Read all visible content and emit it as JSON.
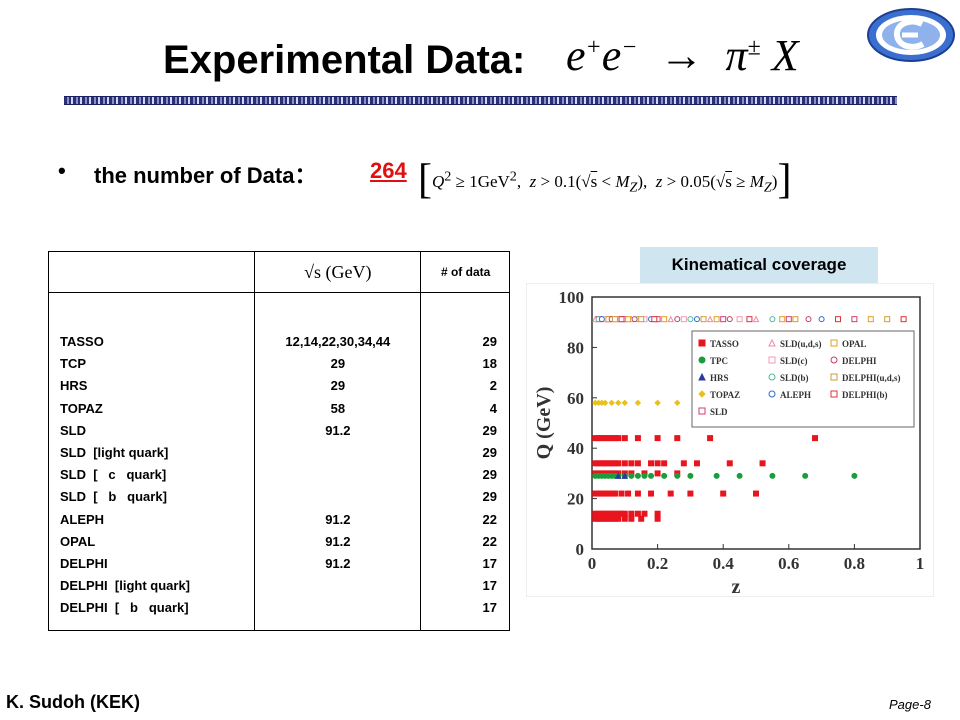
{
  "slide": {
    "title": "Experimental Data:",
    "title_math": "e⁺e⁻ → π± X",
    "bullet_label": "the number of Data：",
    "data_count": "264",
    "condition": "Q² ≥ 1GeV², z > 0.1(√s < M_Z), z > 0.05(√s ≥ M_Z)",
    "footer_author": "K. Sudoh (KEK)",
    "footer_page": "Page-8"
  },
  "table": {
    "headers": [
      "",
      "√s (GeV)",
      "# of data"
    ],
    "rows": [
      {
        "exp": "TASSO",
        "energy": "12,14,22,30,34,44",
        "n": "29"
      },
      {
        "exp": "TCP",
        "energy": "29",
        "n": "18"
      },
      {
        "exp": "HRS",
        "energy": "29",
        "n": "2"
      },
      {
        "exp": "TOPAZ",
        "energy": "58",
        "n": "4"
      },
      {
        "exp": "SLD",
        "energy": "91.2",
        "n": "29"
      },
      {
        "exp": "SLD  [light quark]",
        "energy": "",
        "n": "29"
      },
      {
        "exp": "SLD  [   c   quark]",
        "energy": "",
        "n": "29"
      },
      {
        "exp": "SLD  [   b   quark]",
        "energy": "",
        "n": "29"
      },
      {
        "exp": "ALEPH",
        "energy": "91.2",
        "n": "22"
      },
      {
        "exp": "OPAL",
        "energy": "91.2",
        "n": "22"
      },
      {
        "exp": "DELPHI",
        "energy": "91.2",
        "n": "17"
      },
      {
        "exp": "DELPHI  [light quark]",
        "energy": "",
        "n": "17"
      },
      {
        "exp": "DELPHI  [   b   quark]",
        "energy": "",
        "n": "17"
      }
    ]
  },
  "coverage": {
    "label": "Kinematical coverage"
  },
  "chart_data": {
    "type": "scatter",
    "xlabel": "z",
    "ylabel": "Q (GeV)",
    "xlim": [
      0,
      1
    ],
    "ylim": [
      0,
      100
    ],
    "xticks": [
      "0",
      "0.2",
      "0.4",
      "0.6",
      "0.8",
      "1"
    ],
    "yticks": [
      "0",
      "20",
      "40",
      "60",
      "80",
      "100"
    ],
    "legend_position": "top-right",
    "series": [
      {
        "name": "TASSO",
        "color": "#e8141e",
        "marker": "square",
        "points": [
          [
            0.01,
            14
          ],
          [
            0.02,
            14
          ],
          [
            0.03,
            14
          ],
          [
            0.04,
            14
          ],
          [
            0.05,
            14
          ],
          [
            0.06,
            14
          ],
          [
            0.07,
            14
          ],
          [
            0.08,
            14
          ],
          [
            0.09,
            14
          ],
          [
            0.1,
            14
          ],
          [
            0.12,
            14
          ],
          [
            0.14,
            14
          ],
          [
            0.16,
            14
          ],
          [
            0.2,
            14
          ],
          [
            0.01,
            12
          ],
          [
            0.02,
            12
          ],
          [
            0.03,
            12
          ],
          [
            0.04,
            12
          ],
          [
            0.05,
            12
          ],
          [
            0.06,
            12
          ],
          [
            0.07,
            12
          ],
          [
            0.08,
            12
          ],
          [
            0.1,
            12
          ],
          [
            0.12,
            12
          ],
          [
            0.15,
            12
          ],
          [
            0.2,
            12
          ],
          [
            0.01,
            22
          ],
          [
            0.02,
            22
          ],
          [
            0.03,
            22
          ],
          [
            0.04,
            22
          ],
          [
            0.05,
            22
          ],
          [
            0.06,
            22
          ],
          [
            0.07,
            22
          ],
          [
            0.09,
            22
          ],
          [
            0.11,
            22
          ],
          [
            0.14,
            22
          ],
          [
            0.18,
            22
          ],
          [
            0.24,
            22
          ],
          [
            0.3,
            22
          ],
          [
            0.4,
            22
          ],
          [
            0.5,
            22
          ],
          [
            0.01,
            30
          ],
          [
            0.02,
            30
          ],
          [
            0.03,
            30
          ],
          [
            0.04,
            30
          ],
          [
            0.05,
            30
          ],
          [
            0.06,
            30
          ],
          [
            0.07,
            30
          ],
          [
            0.08,
            30
          ],
          [
            0.1,
            30
          ],
          [
            0.12,
            30
          ],
          [
            0.16,
            30
          ],
          [
            0.2,
            30
          ],
          [
            0.26,
            30
          ],
          [
            0.01,
            34
          ],
          [
            0.02,
            34
          ],
          [
            0.03,
            34
          ],
          [
            0.04,
            34
          ],
          [
            0.05,
            34
          ],
          [
            0.06,
            34
          ],
          [
            0.07,
            34
          ],
          [
            0.08,
            34
          ],
          [
            0.1,
            34
          ],
          [
            0.12,
            34
          ],
          [
            0.14,
            34
          ],
          [
            0.18,
            34
          ],
          [
            0.2,
            34
          ],
          [
            0.22,
            34
          ],
          [
            0.28,
            34
          ],
          [
            0.32,
            34
          ],
          [
            0.42,
            34
          ],
          [
            0.52,
            34
          ],
          [
            0.01,
            44
          ],
          [
            0.02,
            44
          ],
          [
            0.03,
            44
          ],
          [
            0.04,
            44
          ],
          [
            0.05,
            44
          ],
          [
            0.06,
            44
          ],
          [
            0.07,
            44
          ],
          [
            0.08,
            44
          ],
          [
            0.1,
            44
          ],
          [
            0.14,
            44
          ],
          [
            0.2,
            44
          ],
          [
            0.26,
            44
          ],
          [
            0.36,
            44
          ],
          [
            0.68,
            44
          ]
        ]
      },
      {
        "name": "TPC",
        "color": "#1a9e3c",
        "marker": "circle",
        "points": [
          [
            0.01,
            29
          ],
          [
            0.02,
            29
          ],
          [
            0.03,
            29
          ],
          [
            0.04,
            29
          ],
          [
            0.05,
            29
          ],
          [
            0.06,
            29
          ],
          [
            0.07,
            29
          ],
          [
            0.08,
            29
          ],
          [
            0.1,
            29
          ],
          [
            0.12,
            29
          ],
          [
            0.14,
            29
          ],
          [
            0.16,
            29
          ],
          [
            0.18,
            29
          ],
          [
            0.22,
            29
          ],
          [
            0.26,
            29
          ],
          [
            0.3,
            29
          ],
          [
            0.38,
            29
          ],
          [
            0.45,
            29
          ],
          [
            0.55,
            29
          ],
          [
            0.65,
            29
          ],
          [
            0.8,
            29
          ]
        ]
      },
      {
        "name": "HRS",
        "color": "#2a3a9e",
        "marker": "triangle",
        "points": [
          [
            0.08,
            29
          ],
          [
            0.1,
            29
          ]
        ]
      },
      {
        "name": "TOPAZ",
        "color": "#e6c21a",
        "marker": "diamond",
        "points": [
          [
            0.01,
            58
          ],
          [
            0.02,
            58
          ],
          [
            0.03,
            58
          ],
          [
            0.04,
            58
          ],
          [
            0.06,
            58
          ],
          [
            0.08,
            58
          ],
          [
            0.1,
            58
          ],
          [
            0.14,
            58
          ],
          [
            0.2,
            58
          ],
          [
            0.26,
            58
          ]
        ]
      },
      {
        "name": "SLD",
        "color": "#d33a7a",
        "marker": "square-open",
        "points": [
          [
            0.02,
            91.2
          ],
          [
            0.05,
            91.2
          ],
          [
            0.1,
            91.2
          ],
          [
            0.2,
            91.2
          ],
          [
            0.4,
            91.2
          ],
          [
            0.6,
            91.2
          ],
          [
            0.8,
            91.2
          ]
        ]
      },
      {
        "name": "SLD(u,d,s)",
        "color": "#f08aa6",
        "marker": "triangle-open",
        "points": [
          [
            0.01,
            91.2
          ],
          [
            0.03,
            91.2
          ],
          [
            0.06,
            91.2
          ],
          [
            0.12,
            91.2
          ],
          [
            0.24,
            91.2
          ],
          [
            0.36,
            91.2
          ],
          [
            0.5,
            91.2
          ]
        ]
      },
      {
        "name": "SLD(c)",
        "color": "#f29ab2",
        "marker": "square-open",
        "points": [
          [
            0.04,
            91.2
          ],
          [
            0.08,
            91.2
          ],
          [
            0.16,
            91.2
          ],
          [
            0.28,
            91.2
          ],
          [
            0.45,
            91.2
          ]
        ]
      },
      {
        "name": "SLD(b)",
        "color": "#4fb89a",
        "marker": "circle-open",
        "points": [
          [
            0.02,
            91.2
          ],
          [
            0.07,
            91.2
          ],
          [
            0.14,
            91.2
          ],
          [
            0.3,
            91.2
          ],
          [
            0.55,
            91.2
          ]
        ]
      },
      {
        "name": "ALEPH",
        "color": "#2a6ad6",
        "marker": "circle-open",
        "points": [
          [
            0.03,
            91.2
          ],
          [
            0.09,
            91.2
          ],
          [
            0.18,
            91.2
          ],
          [
            0.32,
            91.2
          ],
          [
            0.7,
            91.2
          ]
        ]
      },
      {
        "name": "OPAL",
        "color": "#e0a020",
        "marker": "square-open",
        "points": [
          [
            0.05,
            91.2
          ],
          [
            0.11,
            91.2
          ],
          [
            0.22,
            91.2
          ],
          [
            0.38,
            91.2
          ],
          [
            0.58,
            91.2
          ],
          [
            0.85,
            91.2
          ]
        ]
      },
      {
        "name": "DELPHI",
        "color": "#c04060",
        "marker": "circle-open",
        "points": [
          [
            0.06,
            91.2
          ],
          [
            0.13,
            91.2
          ],
          [
            0.26,
            91.2
          ],
          [
            0.42,
            91.2
          ],
          [
            0.66,
            91.2
          ]
        ]
      },
      {
        "name": "DELPHI(u,d,s)",
        "color": "#d29a3a",
        "marker": "square-open",
        "points": [
          [
            0.07,
            91.2
          ],
          [
            0.15,
            91.2
          ],
          [
            0.34,
            91.2
          ],
          [
            0.62,
            91.2
          ],
          [
            0.9,
            91.2
          ]
        ]
      },
      {
        "name": "DELPHI(b)",
        "color": "#e0303a",
        "marker": "square-open",
        "points": [
          [
            0.09,
            91.2
          ],
          [
            0.19,
            91.2
          ],
          [
            0.48,
            91.2
          ],
          [
            0.75,
            91.2
          ],
          [
            0.95,
            91.2
          ]
        ]
      }
    ]
  }
}
